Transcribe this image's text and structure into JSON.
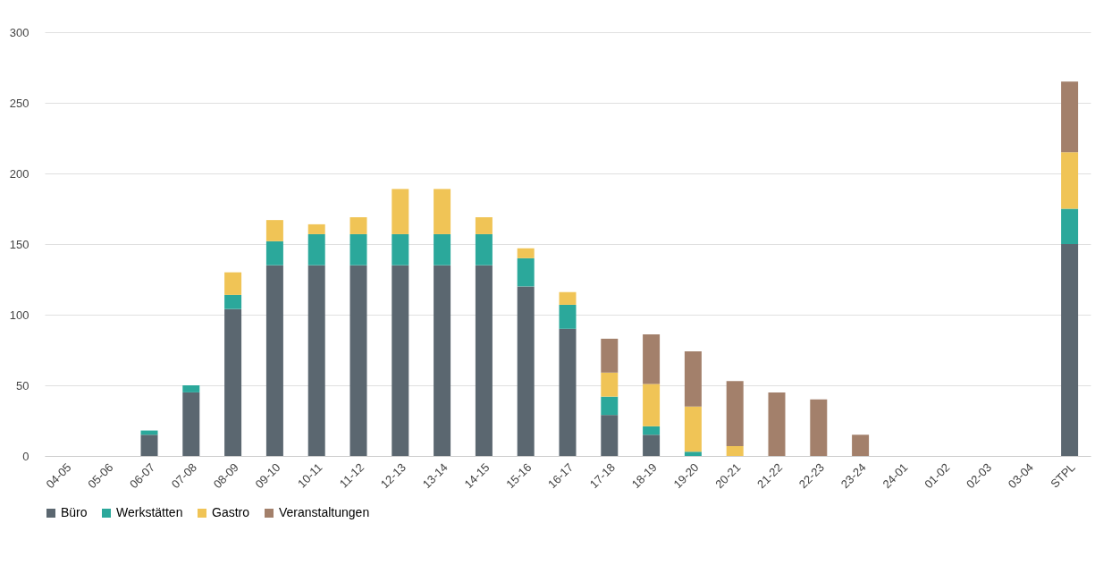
{
  "chart_data": {
    "type": "bar",
    "stacked": true,
    "categories": [
      "04-05",
      "05-06",
      "06-07",
      "07-08",
      "08-09",
      "09-10",
      "10-11",
      "11-12",
      "12-13",
      "13-14",
      "14-15",
      "15-16",
      "16-17",
      "17-18",
      "18-19",
      "19-20",
      "20-21",
      "21-22",
      "22-23",
      "23-24",
      "24-01",
      "01-02",
      "02-03",
      "03-04",
      "STPL"
    ],
    "series": [
      {
        "name": "Büro",
        "color": "#5b6770",
        "values": [
          null,
          null,
          15,
          45,
          104,
          135,
          135,
          135,
          135,
          135,
          135,
          120,
          90,
          29,
          15,
          null,
          null,
          null,
          null,
          null,
          null,
          null,
          null,
          null,
          150
        ]
      },
      {
        "name": "Werkstätten",
        "color": "#2ba89b",
        "values": [
          null,
          null,
          3,
          5,
          10,
          17,
          22,
          22,
          22,
          22,
          22,
          20,
          17,
          13,
          6,
          3,
          null,
          null,
          null,
          null,
          null,
          null,
          null,
          null,
          25
        ]
      },
      {
        "name": "Gastro",
        "color": "#f0c456",
        "values": [
          null,
          null,
          null,
          null,
          16,
          15,
          7,
          12,
          32,
          32,
          12,
          7,
          9,
          17,
          30,
          32,
          7,
          null,
          null,
          null,
          null,
          null,
          null,
          null,
          40
        ]
      },
      {
        "name": "Veranstaltungen",
        "color": "#a3806b",
        "values": [
          null,
          null,
          null,
          null,
          null,
          null,
          null,
          null,
          null,
          null,
          null,
          null,
          null,
          24,
          35,
          39,
          46,
          45,
          40,
          15,
          null,
          null,
          null,
          null,
          50
        ]
      }
    ],
    "ylim": [
      0,
      300
    ],
    "yticks": [
      0,
      50,
      100,
      150,
      200,
      250,
      300
    ],
    "grid": "y",
    "legend": "bottom"
  }
}
